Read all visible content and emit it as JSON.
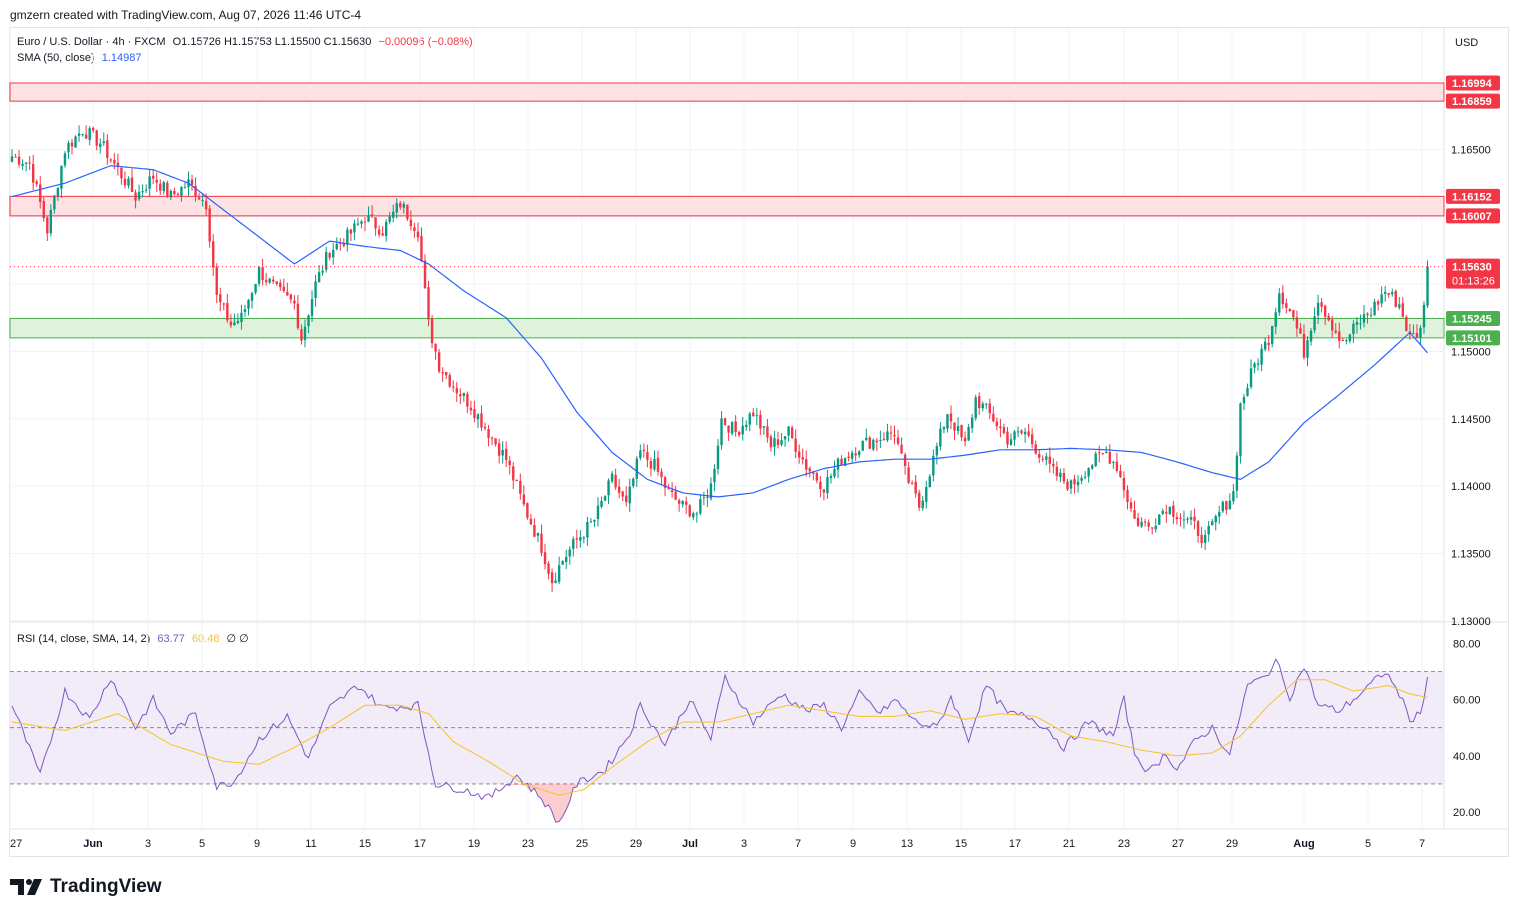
{
  "header": {
    "credit": "gmzern created with TradingView.com, Aug 07, 2026 11:46 UTC-4"
  },
  "legend": {
    "symbol": "Euro / U.S. Dollar · 4h · FXCM",
    "ohlc": "O1.15726 H1.15753 L1.15500 C1.15630",
    "change": "−0.00096 (−0.08%)",
    "sma_label": "SMA (50, close)",
    "sma_value": "1.14987",
    "rsi_label": "RSI (14, close, SMA, 14, 2)",
    "rsi_value": "63.77",
    "rsi_sma_value": "60.48",
    "rsi_extra": "∅ ∅"
  },
  "axis": {
    "currency": "USD"
  },
  "brand": {
    "name": "TradingView"
  },
  "colors": {
    "up": "#089981",
    "down": "#f23645",
    "sma": "#2962ff",
    "rsi": "#7e57c2",
    "rsi_sma": "#f7c325",
    "resistance_fill": "#fde1e3",
    "resistance_border": "#f23645",
    "support_fill": "#dff2dc",
    "support_border": "#4caf50"
  },
  "chart_data": [
    {
      "type": "candlestick",
      "title": "Euro / U.S. Dollar · 4h · FXCM",
      "ylim": [
        1.1282,
        1.1738
      ],
      "yticks": [
        1.13,
        1.135,
        1.14,
        1.145,
        1.15,
        1.165
      ],
      "x_ticks": [
        "27",
        "Jun",
        "3",
        "5",
        "9",
        "11",
        "15",
        "17",
        "19",
        "23",
        "25",
        "29",
        "Jul",
        "3",
        "7",
        "9",
        "13",
        "15",
        "17",
        "21",
        "23",
        "27",
        "29",
        "Aug",
        "5",
        "7"
      ],
      "zones": [
        {
          "kind": "resistance",
          "top": 1.16994,
          "bottom": 1.16859
        },
        {
          "kind": "resistance",
          "top": 1.16152,
          "bottom": 1.16007
        },
        {
          "kind": "support",
          "top": 1.15245,
          "bottom": 1.15101
        }
      ],
      "price_labels": [
        "1.16994",
        "1.16859",
        "1.16152",
        "1.16007",
        "1.15245",
        "1.15101"
      ],
      "last_price": {
        "value": 1.1563,
        "label": "1.15630",
        "countdown": "01:13:26"
      },
      "close_anchors": [
        [
          0,
          1.1645
        ],
        [
          5,
          1.164
        ],
        [
          10,
          1.159
        ],
        [
          15,
          1.165
        ],
        [
          20,
          1.1665
        ],
        [
          25,
          1.1655
        ],
        [
          30,
          1.1635
        ],
        [
          35,
          1.1615
        ],
        [
          40,
          1.163
        ],
        [
          45,
          1.1615
        ],
        [
          50,
          1.1625
        ],
        [
          55,
          1.161
        ],
        [
          58,
          1.154
        ],
        [
          62,
          1.152
        ],
        [
          65,
          1.1525
        ],
        [
          70,
          1.156
        ],
        [
          75,
          1.1545
        ],
        [
          80,
          1.1535
        ],
        [
          82,
          1.151
        ],
        [
          86,
          1.155
        ],
        [
          90,
          1.1575
        ],
        [
          95,
          1.1585
        ],
        [
          100,
          1.16
        ],
        [
          105,
          1.159
        ],
        [
          110,
          1.161
        ],
        [
          115,
          1.159
        ],
        [
          118,
          1.152
        ],
        [
          121,
          1.149
        ],
        [
          125,
          1.1475
        ],
        [
          130,
          1.146
        ],
        [
          135,
          1.144
        ],
        [
          140,
          1.142
        ],
        [
          145,
          1.1385
        ],
        [
          150,
          1.1355
        ],
        [
          153,
          1.133
        ],
        [
          156,
          1.1345
        ],
        [
          160,
          1.136
        ],
        [
          165,
          1.1375
        ],
        [
          170,
          1.1405
        ],
        [
          174,
          1.1385
        ],
        [
          178,
          1.1425
        ],
        [
          182,
          1.1415
        ],
        [
          186,
          1.1395
        ],
        [
          190,
          1.1385
        ],
        [
          194,
          1.138
        ],
        [
          198,
          1.14
        ],
        [
          201,
          1.145
        ],
        [
          205,
          1.144
        ],
        [
          210,
          1.1455
        ],
        [
          215,
          1.143
        ],
        [
          220,
          1.144
        ],
        [
          225,
          1.1415
        ],
        [
          230,
          1.14
        ],
        [
          235,
          1.142
        ],
        [
          240,
          1.143
        ],
        [
          245,
          1.1435
        ],
        [
          250,
          1.144
        ],
        [
          253,
          1.141
        ],
        [
          257,
          1.1385
        ],
        [
          261,
          1.142
        ],
        [
          265,
          1.1455
        ],
        [
          270,
          1.143
        ],
        [
          273,
          1.1465
        ],
        [
          278,
          1.145
        ],
        [
          282,
          1.1435
        ],
        [
          287,
          1.144
        ],
        [
          291,
          1.1425
        ],
        [
          295,
          1.141
        ],
        [
          300,
          1.14
        ],
        [
          305,
          1.1415
        ],
        [
          310,
          1.1425
        ],
        [
          313,
          1.1415
        ],
        [
          318,
          1.1375
        ],
        [
          322,
          1.137
        ],
        [
          327,
          1.1385
        ],
        [
          330,
          1.138
        ],
        [
          335,
          1.137
        ],
        [
          338,
          1.136
        ],
        [
          342,
          1.138
        ],
        [
          346,
          1.1395
        ],
        [
          348,
          1.146
        ],
        [
          352,
          1.149
        ],
        [
          356,
          1.151
        ],
        [
          359,
          1.1545
        ],
        [
          363,
          1.1525
        ],
        [
          366,
          1.15
        ],
        [
          370,
          1.154
        ],
        [
          374,
          1.152
        ],
        [
          377,
          1.1505
        ],
        [
          381,
          1.152
        ],
        [
          385,
          1.153
        ],
        [
          389,
          1.1545
        ],
        [
          393,
          1.1535
        ],
        [
          396,
          1.151
        ],
        [
          399,
          1.1515
        ],
        [
          401,
          1.1563
        ]
      ],
      "sma_anchors": [
        [
          0,
          1.1615
        ],
        [
          15,
          1.1625
        ],
        [
          28,
          1.1638
        ],
        [
          40,
          1.1635
        ],
        [
          50,
          1.1625
        ],
        [
          60,
          1.1605
        ],
        [
          70,
          1.1585
        ],
        [
          80,
          1.1565
        ],
        [
          90,
          1.1582
        ],
        [
          100,
          1.1578
        ],
        [
          110,
          1.1575
        ],
        [
          118,
          1.1565
        ],
        [
          128,
          1.1545
        ],
        [
          140,
          1.1525
        ],
        [
          150,
          1.1495
        ],
        [
          160,
          1.1455
        ],
        [
          170,
          1.1425
        ],
        [
          180,
          1.1405
        ],
        [
          190,
          1.1395
        ],
        [
          200,
          1.1392
        ],
        [
          210,
          1.1395
        ],
        [
          220,
          1.1405
        ],
        [
          230,
          1.1413
        ],
        [
          240,
          1.1418
        ],
        [
          250,
          1.142
        ],
        [
          260,
          1.142
        ],
        [
          270,
          1.1423
        ],
        [
          280,
          1.1427
        ],
        [
          290,
          1.1427
        ],
        [
          300,
          1.1428
        ],
        [
          310,
          1.1427
        ],
        [
          320,
          1.1425
        ],
        [
          330,
          1.1418
        ],
        [
          340,
          1.141
        ],
        [
          348,
          1.1405
        ],
        [
          356,
          1.1418
        ],
        [
          366,
          1.1447
        ],
        [
          376,
          1.1468
        ],
        [
          386,
          1.149
        ],
        [
          396,
          1.1514
        ],
        [
          401,
          1.1499
        ]
      ]
    },
    {
      "type": "line",
      "title": "RSI (14, close, SMA, 14, 2)",
      "ylim": [
        13,
        84
      ],
      "yticks": [
        20,
        40,
        60,
        80
      ],
      "bands": {
        "upper": 70,
        "middle": 50,
        "lower": 30
      },
      "series": [
        {
          "name": "RSI",
          "anchors": [
            [
              0,
              58
            ],
            [
              8,
              33
            ],
            [
              15,
              63
            ],
            [
              22,
              53
            ],
            [
              28,
              68
            ],
            [
              35,
              50
            ],
            [
              40,
              60
            ],
            [
              45,
              48
            ],
            [
              52,
              55
            ],
            [
              58,
              29
            ],
            [
              63,
              31
            ],
            [
              70,
              46
            ],
            [
              78,
              54
            ],
            [
              84,
              39
            ],
            [
              90,
              57
            ],
            [
              98,
              65
            ],
            [
              105,
              57
            ],
            [
              115,
              58
            ],
            [
              120,
              30
            ],
            [
              128,
              28
            ],
            [
              135,
              25
            ],
            [
              143,
              33
            ],
            [
              150,
              25
            ],
            [
              155,
              16
            ],
            [
              160,
              30
            ],
            [
              168,
              35
            ],
            [
              175,
              48
            ],
            [
              178,
              58
            ],
            [
              185,
              44
            ],
            [
              192,
              60
            ],
            [
              198,
              46
            ],
            [
              202,
              68
            ],
            [
              210,
              52
            ],
            [
              218,
              62
            ],
            [
              225,
              56
            ],
            [
              230,
              58
            ],
            [
              235,
              50
            ],
            [
              240,
              62
            ],
            [
              246,
              55
            ],
            [
              250,
              60
            ],
            [
              256,
              52
            ],
            [
              262,
              50
            ],
            [
              266,
              61
            ],
            [
              271,
              46
            ],
            [
              276,
              65
            ],
            [
              282,
              55
            ],
            [
              288,
              54
            ],
            [
              293,
              50
            ],
            [
              298,
              43
            ],
            [
              305,
              52
            ],
            [
              312,
              47
            ],
            [
              315,
              60
            ],
            [
              318,
              41
            ],
            [
              322,
              34
            ],
            [
              327,
              41
            ],
            [
              330,
              35
            ],
            [
              335,
              45
            ],
            [
              340,
              50
            ],
            [
              345,
              40
            ],
            [
              350,
              65
            ],
            [
              355,
              68
            ],
            [
              358,
              74
            ],
            [
              362,
              61
            ],
            [
              366,
              72
            ],
            [
              370,
              58
            ],
            [
              376,
              56
            ],
            [
              382,
              62
            ],
            [
              389,
              70
            ],
            [
              393,
              62
            ],
            [
              396,
              53
            ],
            [
              399,
              55
            ],
            [
              401,
              68
            ],
            [
              402,
              64
            ]
          ]
        },
        {
          "name": "RSI SMA",
          "anchors": [
            [
              0,
              52
            ],
            [
              15,
              49
            ],
            [
              30,
              55
            ],
            [
              45,
              44
            ],
            [
              60,
              38
            ],
            [
              70,
              37
            ],
            [
              80,
              43
            ],
            [
              90,
              50
            ],
            [
              100,
              58
            ],
            [
              110,
              58
            ],
            [
              118,
              55
            ],
            [
              125,
              45
            ],
            [
              135,
              38
            ],
            [
              145,
              30
            ],
            [
              155,
              26
            ],
            [
              162,
              28
            ],
            [
              170,
              36
            ],
            [
              180,
              45
            ],
            [
              190,
              52
            ],
            [
              200,
              52
            ],
            [
              210,
              55
            ],
            [
              220,
              58
            ],
            [
              230,
              56
            ],
            [
              240,
              54
            ],
            [
              250,
              54
            ],
            [
              260,
              56
            ],
            [
              270,
              53
            ],
            [
              280,
              55
            ],
            [
              290,
              54
            ],
            [
              300,
              47
            ],
            [
              310,
              45
            ],
            [
              320,
              42
            ],
            [
              330,
              40
            ],
            [
              340,
              41
            ],
            [
              348,
              47
            ],
            [
              356,
              58
            ],
            [
              364,
              67
            ],
            [
              372,
              67
            ],
            [
              380,
              63
            ],
            [
              390,
              65
            ],
            [
              396,
              62
            ],
            [
              402,
              60.5
            ]
          ]
        }
      ]
    }
  ]
}
